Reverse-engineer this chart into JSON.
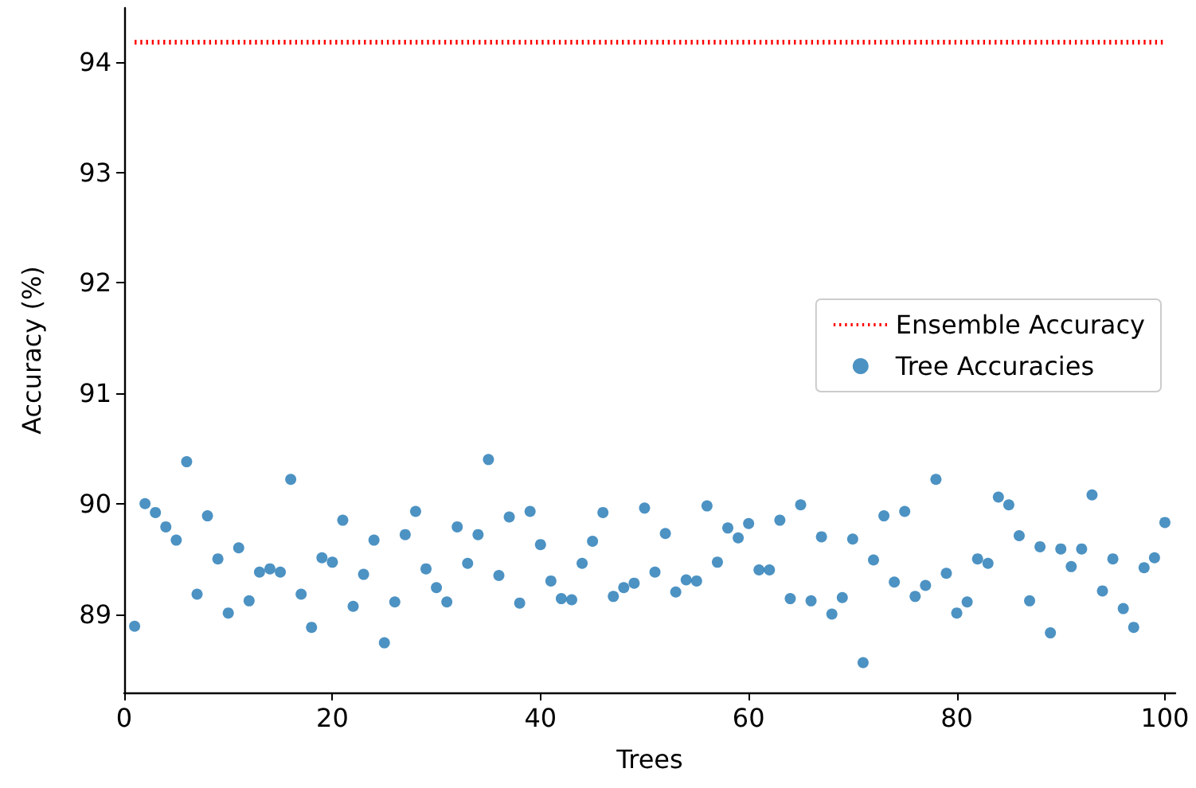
{
  "chart_data": {
    "type": "scatter",
    "xlabel": "Trees",
    "ylabel": "Accuracy (%)",
    "xlim": [
      0,
      101
    ],
    "xticks": [
      0,
      20,
      40,
      60,
      80,
      100
    ],
    "ylim": [
      88.29,
      94.49
    ],
    "yticks": [
      89,
      90,
      91,
      92,
      93,
      94
    ],
    "grid": false,
    "legend": "right",
    "marker": "circle",
    "series": [
      {
        "name": "Ensemble Accuracy",
        "type": "line",
        "color": "#ff0000",
        "line_style": "dotted",
        "marker": "none",
        "x": [
          1,
          100
        ],
        "values": [
          94.18,
          94.18
        ]
      },
      {
        "name": "Tree Accuracies",
        "color": "#1f77b4",
        "x": [
          1,
          2,
          3,
          4,
          5,
          6,
          7,
          8,
          9,
          10,
          11,
          12,
          13,
          14,
          15,
          16,
          17,
          18,
          19,
          20,
          21,
          22,
          23,
          24,
          25,
          26,
          27,
          28,
          29,
          30,
          31,
          32,
          33,
          34,
          35,
          36,
          37,
          38,
          39,
          40,
          41,
          42,
          43,
          44,
          45,
          46,
          47,
          48,
          49,
          50,
          51,
          52,
          53,
          54,
          55,
          56,
          57,
          58,
          59,
          60,
          61,
          62,
          63,
          64,
          65,
          66,
          67,
          68,
          69,
          70,
          71,
          72,
          73,
          74,
          75,
          76,
          77,
          78,
          79,
          80,
          81,
          82,
          83,
          84,
          85,
          86,
          87,
          88,
          89,
          90,
          91,
          92,
          93,
          94,
          95,
          96,
          97,
          98,
          99,
          100
        ],
        "values": [
          88.89,
          90.0,
          89.92,
          89.79,
          89.67,
          90.38,
          89.18,
          89.89,
          89.5,
          89.01,
          89.6,
          89.12,
          89.38,
          89.41,
          89.38,
          90.22,
          89.18,
          88.88,
          89.51,
          89.47,
          89.85,
          89.07,
          89.36,
          89.67,
          88.74,
          89.11,
          89.72,
          89.93,
          89.41,
          89.24,
          89.11,
          89.79,
          89.46,
          89.72,
          90.4,
          89.35,
          89.88,
          89.1,
          89.93,
          89.63,
          89.3,
          89.14,
          89.13,
          89.46,
          89.66,
          89.92,
          89.16,
          89.24,
          89.28,
          89.96,
          89.38,
          89.73,
          89.2,
          89.31,
          89.3,
          89.98,
          89.47,
          89.78,
          89.69,
          89.82,
          89.4,
          89.4,
          89.85,
          89.14,
          89.99,
          89.12,
          89.7,
          89.0,
          89.15,
          89.68,
          88.56,
          89.49,
          89.89,
          89.29,
          89.93,
          89.16,
          89.26,
          90.22,
          89.37,
          89.01,
          89.11,
          89.5,
          89.46,
          90.06,
          89.99,
          89.71,
          89.12,
          89.61,
          88.83,
          89.59,
          89.43,
          89.59,
          90.08,
          89.21,
          89.5,
          89.05,
          88.88,
          89.42,
          89.51,
          89.83
        ]
      }
    ]
  }
}
